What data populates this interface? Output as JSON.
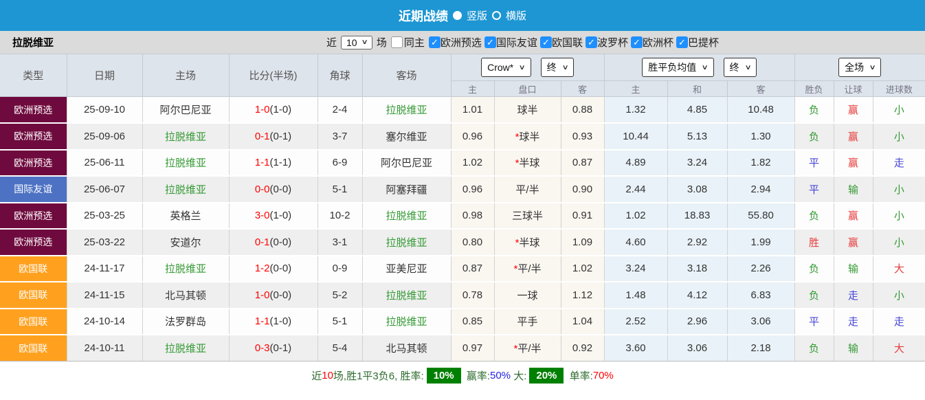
{
  "top_bar": {
    "title": "近期战绩",
    "radio_vertical": "竖版",
    "radio_horizontal": "横版"
  },
  "filter_bar": {
    "team": "拉脱维亚",
    "near": "近",
    "count": "10",
    "matches": "场",
    "same_home": "同主",
    "competitions": [
      "欧洲预选",
      "国际友谊",
      "欧国联",
      "波罗杯",
      "欧洲杯",
      "巴提杯"
    ]
  },
  "table": {
    "columns": {
      "type": "类型",
      "date": "日期",
      "home": "主场",
      "score": "比分(半场)",
      "corners": "角球",
      "away": "客场"
    },
    "odds_company": "Crow*",
    "odds_stage": "终",
    "avg_type": "胜平负均值",
    "avg_stage": "终",
    "scope": "全场",
    "subheaders": [
      "主",
      "盘口",
      "客",
      "主",
      "和",
      "客",
      "胜负",
      "让球",
      "进球数"
    ],
    "rows": [
      {
        "type": "欧洲预选",
        "type_color": "maroon",
        "date": "25-09-10",
        "home": "阿尔巴尼亚",
        "home_green": false,
        "score": "1-0",
        "half": "(1-0)",
        "corners": "2-4",
        "away": "拉脱维亚",
        "away_green": true,
        "odds_home": "1.01",
        "handicap": "球半",
        "star": false,
        "odds_away": "0.88",
        "avg": [
          "1.32",
          "4.85",
          "10.48"
        ],
        "results": [
          [
            "负",
            "green"
          ],
          [
            "赢",
            "red"
          ],
          [
            "小",
            "green"
          ]
        ]
      },
      {
        "type": "欧洲预选",
        "type_color": "maroon",
        "date": "25-09-06",
        "home": "拉脱维亚",
        "home_green": true,
        "score": "0-1",
        "half": "(0-1)",
        "corners": "3-7",
        "away": "塞尔维亚",
        "away_green": false,
        "odds_home": "0.96",
        "handicap": "球半",
        "star": true,
        "odds_away": "0.93",
        "avg": [
          "10.44",
          "5.13",
          "1.30"
        ],
        "results": [
          [
            "负",
            "green"
          ],
          [
            "赢",
            "red"
          ],
          [
            "小",
            "green"
          ]
        ]
      },
      {
        "type": "欧洲预选",
        "type_color": "maroon",
        "date": "25-06-11",
        "home": "拉脱维亚",
        "home_green": true,
        "score": "1-1",
        "half": "(1-1)",
        "corners": "6-9",
        "away": "阿尔巴尼亚",
        "away_green": false,
        "odds_home": "1.02",
        "handicap": "半球",
        "star": true,
        "odds_away": "0.87",
        "avg": [
          "4.89",
          "3.24",
          "1.82"
        ],
        "results": [
          [
            "平",
            "blue"
          ],
          [
            "赢",
            "red"
          ],
          [
            "走",
            "blue"
          ]
        ]
      },
      {
        "type": "国际友谊",
        "type_color": "blue",
        "date": "25-06-07",
        "home": "拉脱维亚",
        "home_green": true,
        "score": "0-0",
        "half": "(0-0)",
        "corners": "5-1",
        "away": "阿塞拜疆",
        "away_green": false,
        "odds_home": "0.96",
        "handicap": "平/半",
        "star": false,
        "odds_away": "0.90",
        "avg": [
          "2.44",
          "3.08",
          "2.94"
        ],
        "results": [
          [
            "平",
            "blue"
          ],
          [
            "输",
            "green"
          ],
          [
            "小",
            "green"
          ]
        ]
      },
      {
        "type": "欧洲预选",
        "type_color": "maroon",
        "date": "25-03-25",
        "home": "英格兰",
        "home_green": false,
        "score": "3-0",
        "half": "(1-0)",
        "corners": "10-2",
        "away": "拉脱维亚",
        "away_green": true,
        "odds_home": "0.98",
        "handicap": "三球半",
        "star": false,
        "odds_away": "0.91",
        "avg": [
          "1.02",
          "18.83",
          "55.80"
        ],
        "results": [
          [
            "负",
            "green"
          ],
          [
            "赢",
            "red"
          ],
          [
            "小",
            "green"
          ]
        ]
      },
      {
        "type": "欧洲预选",
        "type_color": "maroon",
        "date": "25-03-22",
        "home": "安道尔",
        "home_green": false,
        "score": "0-1",
        "half": "(0-0)",
        "corners": "3-1",
        "away": "拉脱维亚",
        "away_green": true,
        "odds_home": "0.80",
        "handicap": "半球",
        "star": true,
        "odds_away": "1.09",
        "avg": [
          "4.60",
          "2.92",
          "1.99"
        ],
        "results": [
          [
            "胜",
            "red"
          ],
          [
            "赢",
            "red"
          ],
          [
            "小",
            "green"
          ]
        ]
      },
      {
        "type": "欧国联",
        "type_color": "orange",
        "date": "24-11-17",
        "home": "拉脱维亚",
        "home_green": true,
        "score": "1-2",
        "half": "(0-0)",
        "corners": "0-9",
        "away": "亚美尼亚",
        "away_green": false,
        "odds_home": "0.87",
        "handicap": "平/半",
        "star": true,
        "odds_away": "1.02",
        "avg": [
          "3.24",
          "3.18",
          "2.26"
        ],
        "results": [
          [
            "负",
            "green"
          ],
          [
            "输",
            "green"
          ],
          [
            "大",
            "red"
          ]
        ]
      },
      {
        "type": "欧国联",
        "type_color": "orange",
        "date": "24-11-15",
        "home": "北马其顿",
        "home_green": false,
        "score": "1-0",
        "half": "(0-0)",
        "corners": "5-2",
        "away": "拉脱维亚",
        "away_green": true,
        "odds_home": "0.78",
        "handicap": "一球",
        "star": false,
        "odds_away": "1.12",
        "avg": [
          "1.48",
          "4.12",
          "6.83"
        ],
        "results": [
          [
            "负",
            "green"
          ],
          [
            "走",
            "blue"
          ],
          [
            "小",
            "green"
          ]
        ]
      },
      {
        "type": "欧国联",
        "type_color": "orange",
        "date": "24-10-14",
        "home": "法罗群岛",
        "home_green": false,
        "score": "1-1",
        "half": "(1-0)",
        "corners": "5-1",
        "away": "拉脱维亚",
        "away_green": true,
        "odds_home": "0.85",
        "handicap": "平手",
        "star": false,
        "odds_away": "1.04",
        "avg": [
          "2.52",
          "2.96",
          "3.06"
        ],
        "results": [
          [
            "平",
            "blue"
          ],
          [
            "走",
            "blue"
          ],
          [
            "走",
            "blue"
          ]
        ]
      },
      {
        "type": "欧国联",
        "type_color": "orange",
        "date": "24-10-11",
        "home": "拉脱维亚",
        "home_green": true,
        "score": "0-3",
        "half": "(0-1)",
        "corners": "5-4",
        "away": "北马其顿",
        "away_green": false,
        "odds_home": "0.97",
        "handicap": "平/半",
        "star": true,
        "odds_away": "0.92",
        "avg": [
          "3.60",
          "3.06",
          "2.18"
        ],
        "results": [
          [
            "负",
            "green"
          ],
          [
            "输",
            "green"
          ],
          [
            "大",
            "red"
          ]
        ]
      }
    ]
  },
  "footer": {
    "segments": [
      {
        "text": "近",
        "c": "green"
      },
      {
        "text": "10",
        "c": "red"
      },
      {
        "text": "场,胜1平3负6, 胜率:",
        "c": "green"
      },
      {
        "text": "10%",
        "c": "badge"
      },
      {
        "text": " 赢率:",
        "c": "green"
      },
      {
        "text": "50%",
        "c": "blue"
      },
      {
        "text": " 大:",
        "c": "green"
      },
      {
        "text": "20%",
        "c": "badge"
      },
      {
        "text": " 单率:",
        "c": "green"
      },
      {
        "text": "70%",
        "c": "red"
      }
    ]
  },
  "colors": {
    "topbar_blue": "#1d96d3",
    "checkbox_blue": "#1e8fff",
    "type_maroon": "#6f0a3e",
    "type_blue": "#4d72c4",
    "type_orange": "#ffa11f",
    "odds_bg": "#faf6f0",
    "avg_bg": "#e9f2f8",
    "team_green": "#339933",
    "result_red": "#e63b3b",
    "result_blue": "#4545d8",
    "score_red": "#ff0000",
    "badge_green": "#008000"
  }
}
